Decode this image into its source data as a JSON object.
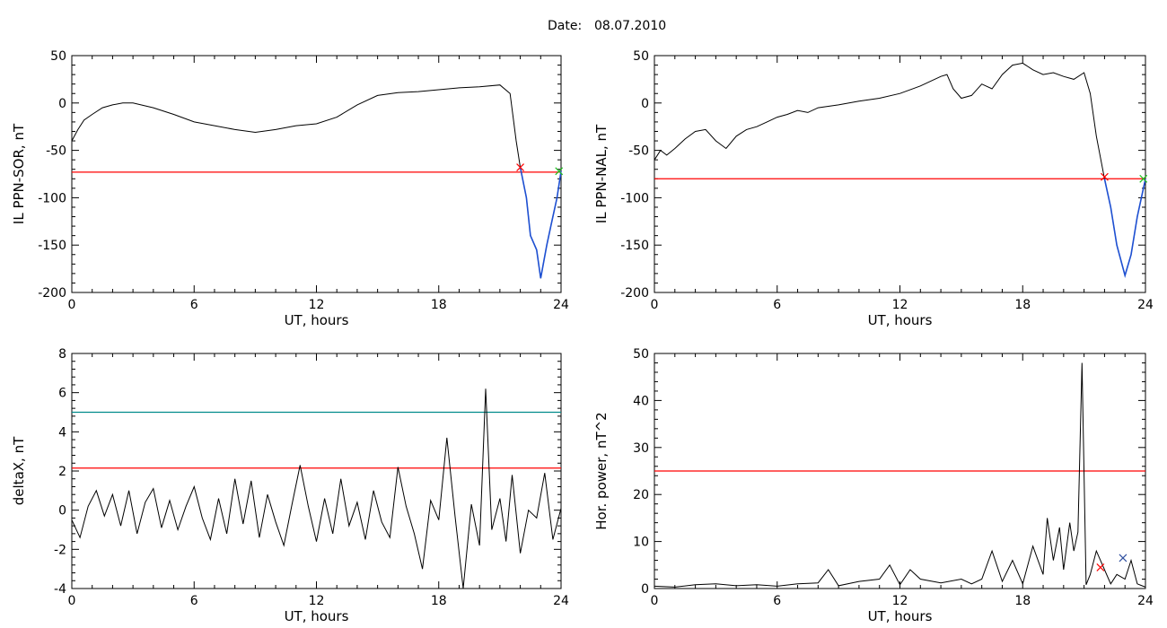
{
  "header": {
    "date_label": "Date:",
    "date_value": "08.07.2010"
  },
  "colors": {
    "axis": "#000000",
    "series": "#000000",
    "threshold": "#ff0000",
    "upper_threshold": "#008b8b",
    "highlight": "#1e50d2",
    "marker_red": "#ff0000",
    "marker_blue": "#3050a0",
    "marker_green": "#20c020"
  },
  "chart_data": [
    {
      "type": "line",
      "xlabel": "UT, hours",
      "ylabel": "IL PPN-SOR, nT",
      "xlim": [
        0,
        24
      ],
      "ylim": [
        -200,
        50
      ],
      "xticks": [
        0,
        6,
        12,
        18,
        24
      ],
      "yticks": [
        -200,
        -150,
        -100,
        -50,
        0,
        50
      ],
      "threshold": -73,
      "series": [
        {
          "x": [
            0,
            0.3,
            0.6,
            1,
            1.5,
            2,
            2.5,
            3,
            4,
            5,
            6,
            7,
            8,
            9,
            10,
            11,
            12,
            13,
            14,
            15,
            16,
            17,
            18,
            19,
            20,
            21,
            21.5,
            21.8,
            22,
            22.3,
            22.5,
            22.8,
            23,
            23.3,
            23.5,
            23.8,
            24
          ],
          "y": [
            -40,
            -28,
            -18,
            -12,
            -5,
            -2,
            0,
            0,
            -5,
            -12,
            -20,
            -24,
            -28,
            -31,
            -28,
            -24,
            -22,
            -15,
            -2,
            8,
            11,
            12,
            14,
            16,
            17,
            19,
            10,
            -40,
            -68,
            -100,
            -140,
            -155,
            -185,
            -150,
            -130,
            -100,
            -72
          ]
        }
      ],
      "highlight_from": 22,
      "markers": [
        {
          "x": 22,
          "y": -68,
          "color": "red"
        },
        {
          "x": 23.9,
          "y": -72,
          "color": "green"
        }
      ]
    },
    {
      "type": "line",
      "xlabel": "UT, hours",
      "ylabel": "IL PPN-NAL, nT",
      "xlim": [
        0,
        24
      ],
      "ylim": [
        -200,
        50
      ],
      "xticks": [
        0,
        6,
        12,
        18,
        24
      ],
      "yticks": [
        -200,
        -150,
        -100,
        -50,
        0,
        50
      ],
      "threshold": -80,
      "series": [
        {
          "x": [
            0,
            0.3,
            0.6,
            1,
            1.5,
            2,
            2.5,
            3,
            3.5,
            4,
            4.5,
            5,
            5.5,
            6,
            6.5,
            7,
            7.5,
            8,
            9,
            10,
            11,
            12,
            13,
            14,
            14.3,
            14.6,
            15,
            15.5,
            16,
            16.5,
            17,
            17.5,
            18,
            18.5,
            19,
            19.5,
            20,
            20.5,
            21,
            21.3,
            21.6,
            22,
            22.3,
            22.6,
            23,
            23.3,
            23.6,
            24
          ],
          "y": [
            -60,
            -50,
            -55,
            -48,
            -38,
            -30,
            -28,
            -40,
            -48,
            -35,
            -28,
            -25,
            -20,
            -15,
            -12,
            -8,
            -10,
            -5,
            -2,
            2,
            5,
            10,
            18,
            28,
            30,
            15,
            5,
            8,
            20,
            15,
            30,
            40,
            42,
            35,
            30,
            32,
            28,
            25,
            32,
            10,
            -35,
            -80,
            -110,
            -150,
            -182,
            -160,
            -120,
            -80
          ]
        }
      ],
      "highlight_from": 22,
      "markers": [
        {
          "x": 22,
          "y": -78,
          "color": "red"
        },
        {
          "x": 23.9,
          "y": -80,
          "color": "green"
        }
      ]
    },
    {
      "type": "line",
      "xlabel": "UT, hours",
      "ylabel": "deltaX, nT",
      "xlim": [
        0,
        24
      ],
      "ylim": [
        -4,
        8
      ],
      "xticks": [
        0,
        6,
        12,
        18,
        24
      ],
      "yticks": [
        -4,
        -2,
        0,
        2,
        4,
        6,
        8
      ],
      "threshold": 2.15,
      "upper_threshold": 5,
      "series": [
        {
          "x": [
            0,
            0.4,
            0.8,
            1.2,
            1.6,
            2,
            2.4,
            2.8,
            3.2,
            3.6,
            4,
            4.4,
            4.8,
            5.2,
            5.6,
            6,
            6.4,
            6.8,
            7.2,
            7.6,
            8,
            8.4,
            8.8,
            9.2,
            9.6,
            10,
            10.4,
            10.8,
            11.2,
            11.6,
            12,
            12.4,
            12.8,
            13.2,
            13.6,
            14,
            14.4,
            14.8,
            15.2,
            15.6,
            16,
            16.4,
            16.8,
            17.2,
            17.6,
            18,
            18.4,
            18.8,
            19.2,
            19.6,
            20,
            20.3,
            20.6,
            21,
            21.3,
            21.6,
            22,
            22.4,
            22.8,
            23.2,
            23.6,
            24
          ],
          "y": [
            -0.5,
            -1.4,
            0.2,
            1,
            -0.3,
            0.8,
            -0.8,
            1,
            -1.2,
            0.4,
            1.1,
            -0.9,
            0.5,
            -1,
            0.2,
            1.2,
            -0.4,
            -1.5,
            0.6,
            -1.2,
            1.6,
            -0.7,
            1.5,
            -1.4,
            0.8,
            -0.6,
            -1.8,
            0.3,
            2.3,
            0.2,
            -1.6,
            0.6,
            -1.2,
            1.6,
            -0.8,
            0.4,
            -1.5,
            1,
            -0.6,
            -1.4,
            2.2,
            0.2,
            -1.2,
            -3,
            0.5,
            -0.5,
            3.7,
            -0.3,
            -4,
            0.3,
            -1.8,
            6.2,
            -1,
            0.6,
            -1.6,
            1.8,
            -2.2,
            0,
            -0.4,
            1.9,
            -1.5,
            0.1
          ]
        }
      ],
      "markers": []
    },
    {
      "type": "line",
      "xlabel": "UT, hours",
      "ylabel": "Hor. power, nT^2",
      "xlim": [
        0,
        24
      ],
      "ylim": [
        0,
        50
      ],
      "xticks": [
        0,
        6,
        12,
        18,
        24
      ],
      "yticks": [
        0,
        10,
        20,
        30,
        40,
        50
      ],
      "threshold": 25,
      "series": [
        {
          "x": [
            0,
            1,
            2,
            3,
            4,
            5,
            6,
            7,
            8,
            8.5,
            9,
            10,
            11,
            11.5,
            12,
            12.5,
            13,
            14,
            15,
            15.5,
            16,
            16.5,
            17,
            17.5,
            18,
            18.5,
            19,
            19.2,
            19.5,
            19.8,
            20,
            20.3,
            20.5,
            20.7,
            20.9,
            21.1,
            21.3,
            21.6,
            22,
            22.3,
            22.6,
            23,
            23.3,
            23.6,
            24
          ],
          "y": [
            0.5,
            0.3,
            0.8,
            1,
            0.6,
            0.8,
            0.5,
            1,
            1.2,
            4,
            0.6,
            1.5,
            2,
            5,
            0.8,
            4,
            2,
            1.2,
            2,
            1,
            2,
            8,
            1.5,
            6,
            1,
            9,
            3,
            15,
            6,
            13,
            4,
            14,
            8,
            12,
            48,
            0.8,
            3,
            8,
            4,
            1,
            3,
            2,
            6,
            1,
            0.3
          ]
        }
      ],
      "markers": [
        {
          "x": 21.8,
          "y": 4.5,
          "color": "red"
        },
        {
          "x": 22.9,
          "y": 6.5,
          "color": "blue"
        }
      ]
    }
  ]
}
